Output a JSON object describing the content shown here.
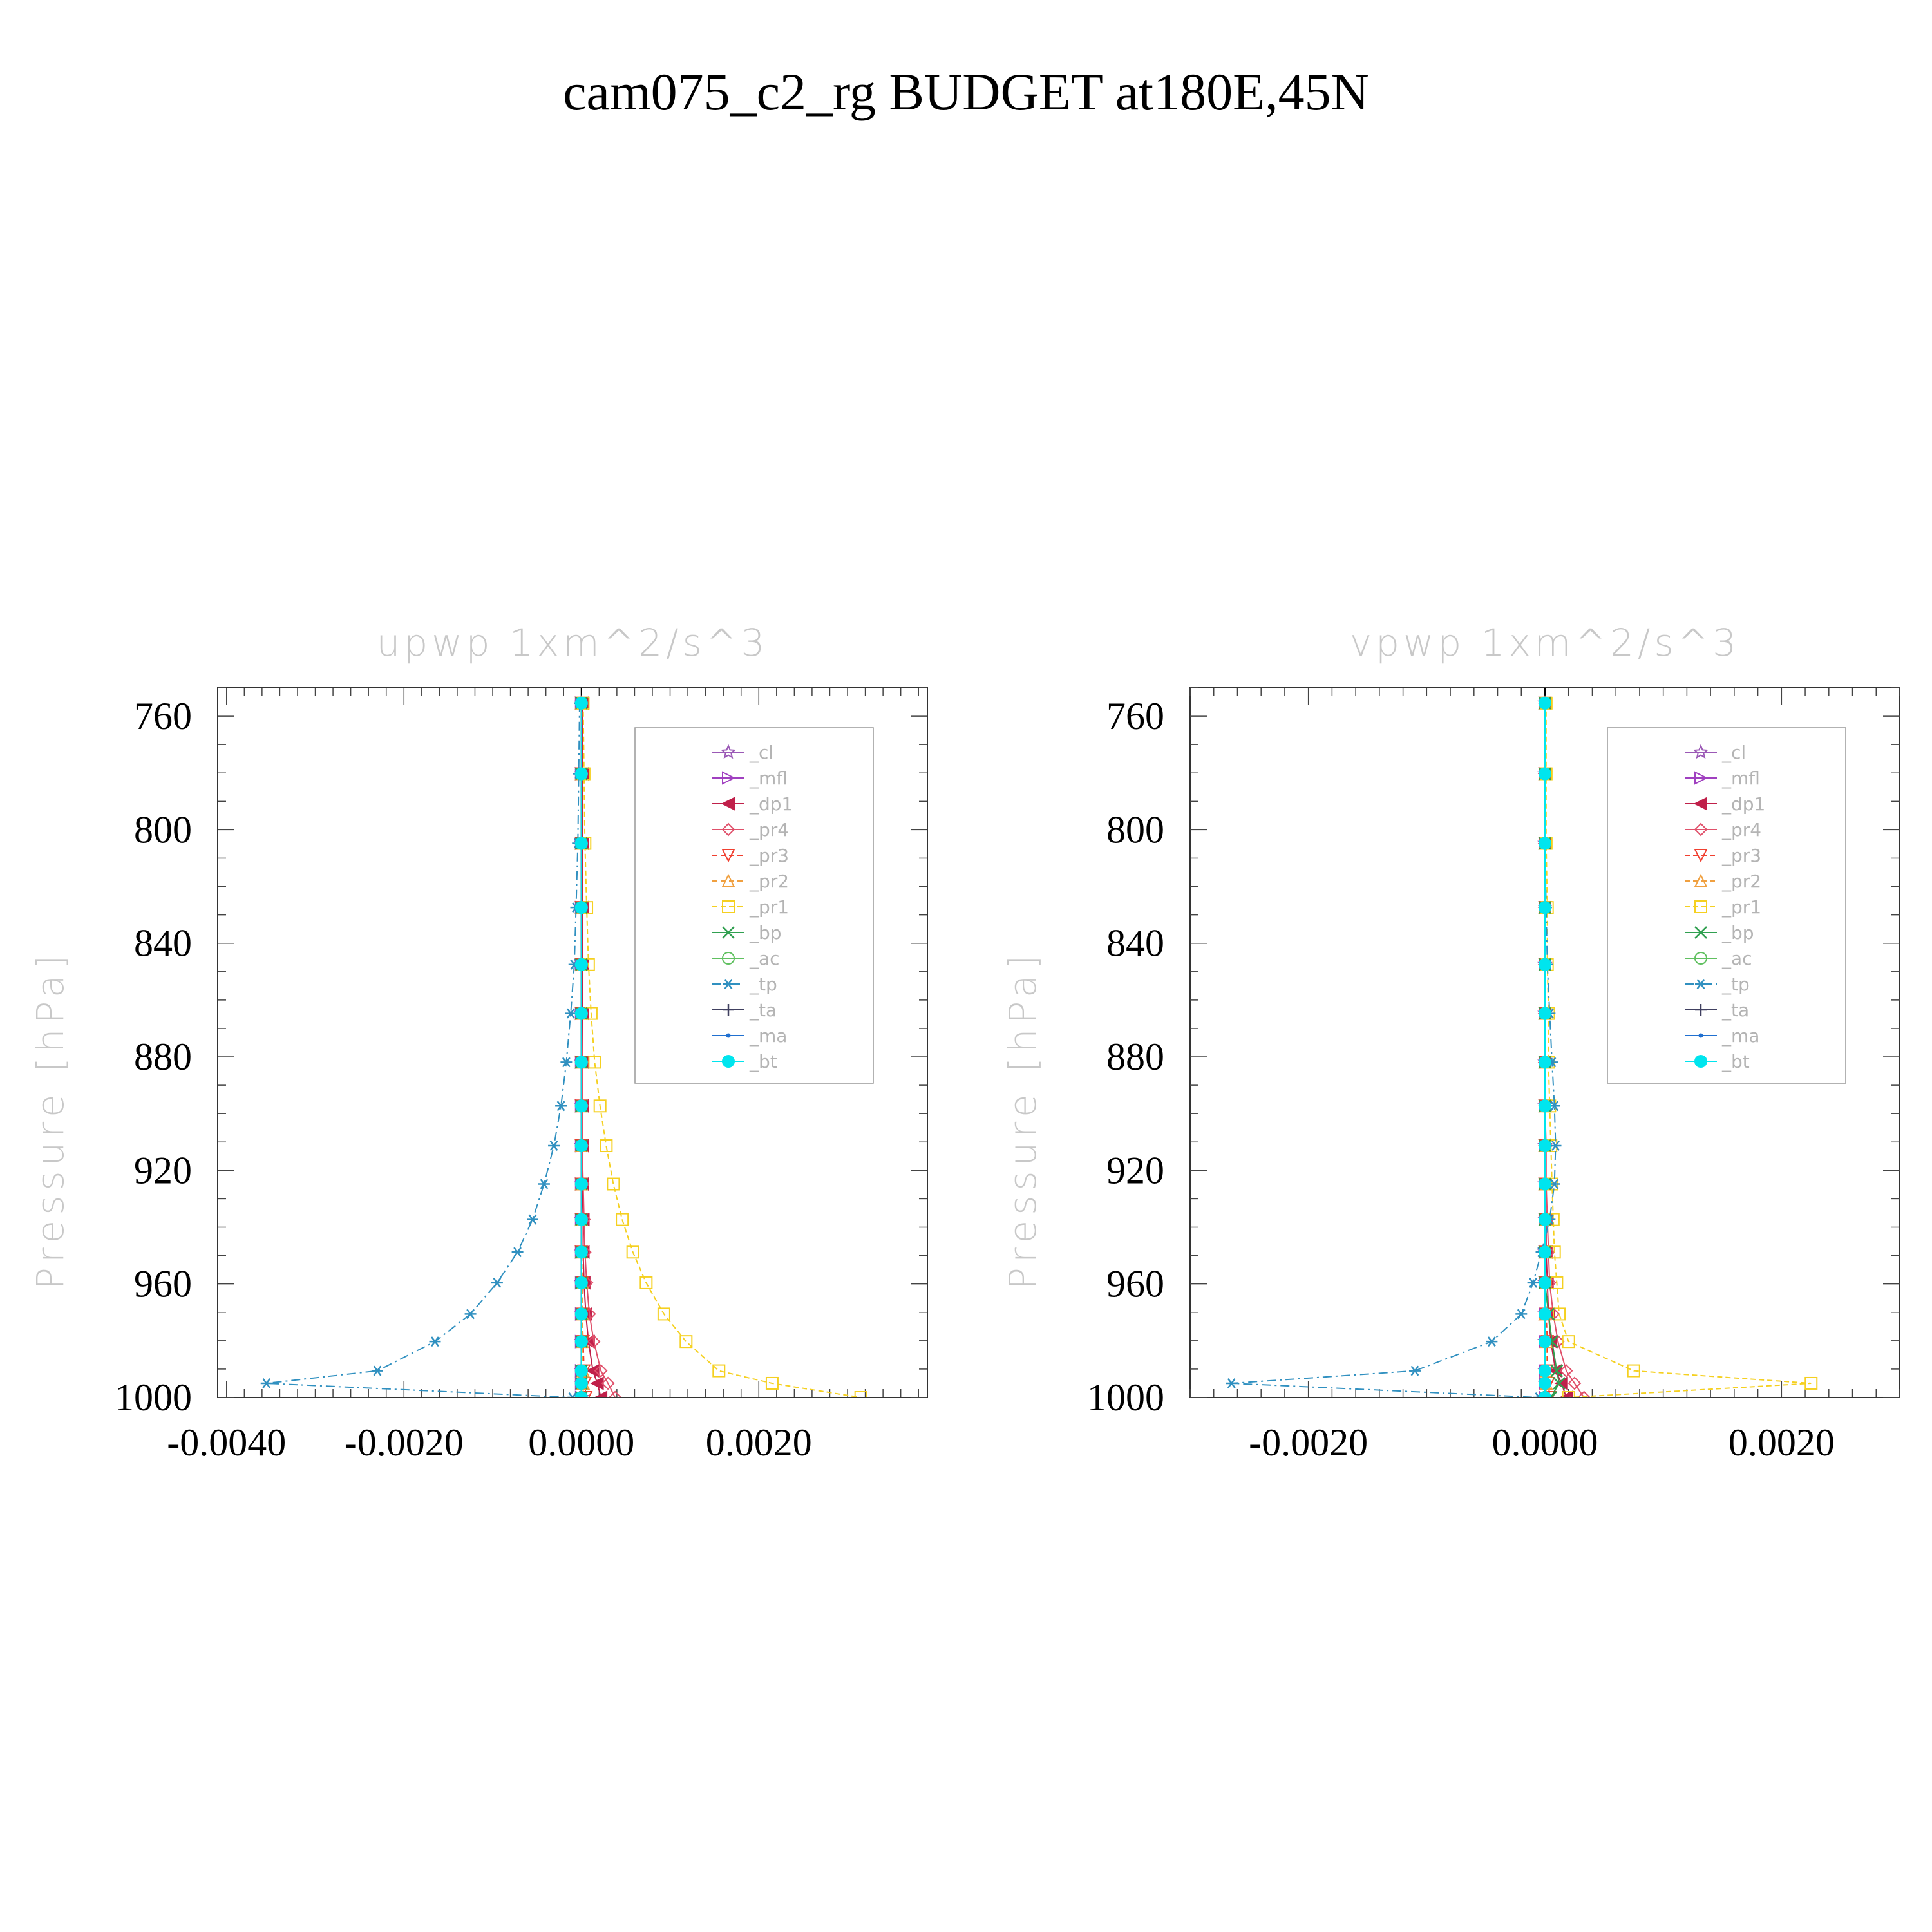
{
  "title": "cam075_c2_rg  BUDGET at180E,45N",
  "chart_data": [
    {
      "type": "line",
      "title": "upwp    1xm^2/s^3",
      "ylabel": "Pressure  [hPa]",
      "xlabel": "",
      "xlim": [
        -0.0041,
        0.0039
      ],
      "ylim": [
        750,
        1000
      ],
      "y_inverted": true,
      "grid": false,
      "legend_position": "top-right",
      "xticks": [
        -0.004,
        -0.002,
        0.0,
        0.002
      ],
      "xtick_labels": [
        "-0.0040",
        "-0.0020",
        "0.0000",
        "0.0020"
      ],
      "yticks": [
        760,
        800,
        840,
        880,
        920,
        960,
        1000
      ],
      "ytick_labels": [
        "760",
        "800",
        "840",
        "880",
        "920",
        "960",
        "1000"
      ],
      "pressure_levels": [
        755.4,
        780.3,
        804.8,
        827.4,
        847.5,
        864.7,
        881.9,
        897.3,
        911.3,
        924.8,
        937.3,
        948.8,
        959.6,
        970.6,
        980.3,
        990.6,
        995.0,
        1000.0
      ],
      "series": [
        {
          "name": "_cl",
          "color": "#9b59b6",
          "marker": "star",
          "values": [
            0,
            0,
            0,
            0,
            0,
            0,
            0,
            0,
            0,
            0,
            0,
            0,
            0,
            0,
            0,
            0,
            0,
            0
          ]
        },
        {
          "name": "_mfl",
          "color": "#a040c0",
          "marker": "triangle-right",
          "values": [
            0,
            0,
            0,
            0,
            0,
            0,
            0,
            0,
            0,
            0,
            0,
            0,
            0,
            0,
            0,
            0,
            0,
            0
          ]
        },
        {
          "name": "_dp1",
          "color": "#c0204a",
          "marker": "triangle-left",
          "values": [
            1e-05,
            1e-05,
            1e-05,
            1e-05,
            1e-05,
            1e-05,
            1e-05,
            1e-05,
            1e-05,
            1e-05,
            2e-05,
            2e-05,
            3e-05,
            5e-05,
            8e-05,
            0.00013,
            0.00018,
            0.00022
          ]
        },
        {
          "name": "_pr4",
          "color": "#e0506a",
          "marker": "diamond",
          "values": [
            0,
            0,
            0,
            0,
            0,
            0,
            1e-05,
            1e-05,
            1e-05,
            2e-05,
            3e-05,
            4e-05,
            6e-05,
            9e-05,
            0.00014,
            0.00022,
            0.0003,
            0.00038
          ]
        },
        {
          "name": "_pr3",
          "color": "#f04030",
          "marker": "triangle-down",
          "values": [
            0,
            0,
            0,
            0,
            0,
            0,
            0,
            0,
            0,
            0,
            0,
            0,
            1e-05,
            1e-05,
            2e-05,
            3e-05,
            4e-05,
            5e-05
          ]
        },
        {
          "name": "_pr2",
          "color": "#f0a040",
          "marker": "triangle-up",
          "values": [
            0,
            0,
            0,
            0,
            0,
            0,
            0,
            0,
            0,
            0,
            0,
            0,
            1e-05,
            1e-05,
            1e-05,
            2e-05,
            2e-05,
            2e-05
          ]
        },
        {
          "name": "_pr1",
          "color": "#f5d020",
          "marker": "square",
          "values": [
            2e-05,
            3e-05,
            4e-05,
            6e-05,
            8e-05,
            0.00011,
            0.00015,
            0.00021,
            0.00028,
            0.00036,
            0.00046,
            0.00058,
            0.00073,
            0.00093,
            0.00118,
            0.00155,
            0.00215,
            0.00315
          ]
        },
        {
          "name": "_bp",
          "color": "#30a050",
          "marker": "x",
          "values": [
            0,
            0,
            0,
            0,
            0,
            0,
            0,
            0,
            0,
            0,
            0,
            0,
            0,
            0,
            0,
            0,
            0,
            0
          ]
        },
        {
          "name": "_ac",
          "color": "#60c060",
          "marker": "circle-open",
          "values": [
            0,
            0,
            0,
            0,
            0,
            0,
            0,
            0,
            0,
            0,
            0,
            0,
            0,
            0,
            0,
            0,
            0,
            0
          ]
        },
        {
          "name": "_tp",
          "color": "#3090c0",
          "marker": "asterisk",
          "values": [
            -2e-05,
            -3e-05,
            -4e-05,
            -6e-05,
            -8e-05,
            -0.00012,
            -0.00017,
            -0.00023,
            -0.00031,
            -0.00042,
            -0.00055,
            -0.00072,
            -0.00095,
            -0.00125,
            -0.00165,
            -0.0023,
            -0.00355,
            -0.0001
          ]
        },
        {
          "name": "_ta",
          "color": "#404060",
          "marker": "plus",
          "values": [
            0,
            0,
            0,
            0,
            0,
            0,
            0,
            0,
            0,
            0,
            0,
            0,
            0,
            0,
            0,
            0,
            0,
            0
          ]
        },
        {
          "name": "_ma",
          "color": "#2070d0",
          "marker": "dot",
          "values": [
            0,
            0,
            0,
            0,
            0,
            0,
            0,
            0,
            0,
            0,
            0,
            0,
            0,
            0,
            0,
            0,
            0,
            0
          ]
        },
        {
          "name": "_bt",
          "color": "#00e5ee",
          "marker": "circle-filled",
          "values": [
            0,
            0,
            0,
            0,
            0,
            0,
            0,
            0,
            0,
            0,
            0,
            0,
            0,
            0,
            0,
            0,
            0,
            0
          ]
        }
      ]
    },
    {
      "type": "line",
      "title": "vpwp    1xm^2/s^3",
      "ylabel": "Pressure  [hPa]",
      "xlabel": "",
      "xlim": [
        -0.003,
        0.003
      ],
      "ylim": [
        750,
        1000
      ],
      "y_inverted": true,
      "grid": false,
      "legend_position": "top-right",
      "xticks": [
        -0.002,
        0.0,
        0.002
      ],
      "xtick_labels": [
        "-0.0020",
        "0.0000",
        "0.0020"
      ],
      "yticks": [
        760,
        800,
        840,
        880,
        920,
        960,
        1000
      ],
      "ytick_labels": [
        "760",
        "800",
        "840",
        "880",
        "920",
        "960",
        "1000"
      ],
      "pressure_levels": [
        755.4,
        780.3,
        804.8,
        827.4,
        847.5,
        864.7,
        881.9,
        897.3,
        911.3,
        924.8,
        937.3,
        948.8,
        959.6,
        970.6,
        980.3,
        990.6,
        995.0,
        1000.0
      ],
      "series": [
        {
          "name": "_cl",
          "color": "#9b59b6",
          "marker": "star",
          "values": [
            0,
            0,
            0,
            0,
            0,
            0,
            0,
            0,
            0,
            0,
            0,
            0,
            0,
            0,
            0,
            0,
            0,
            0
          ]
        },
        {
          "name": "_mfl",
          "color": "#a040c0",
          "marker": "triangle-right",
          "values": [
            0,
            0,
            0,
            0,
            0,
            0,
            0,
            0,
            0,
            0,
            0,
            0,
            0,
            0,
            0,
            0,
            0,
            0
          ]
        },
        {
          "name": "_dp1",
          "color": "#c0204a",
          "marker": "triangle-left",
          "values": [
            0,
            0,
            0,
            0,
            0,
            0,
            0,
            0,
            0,
            0,
            1e-05,
            1e-05,
            2e-05,
            3e-05,
            5e-05,
            9e-05,
            0.00014,
            0.00018
          ]
        },
        {
          "name": "_pr4",
          "color": "#e0506a",
          "marker": "diamond",
          "values": [
            0,
            0,
            0,
            0,
            0,
            0,
            0,
            0,
            1e-05,
            1e-05,
            2e-05,
            3e-05,
            4e-05,
            7e-05,
            0.00011,
            0.00018,
            0.00025,
            0.00033
          ]
        },
        {
          "name": "_pr3",
          "color": "#f04030",
          "marker": "triangle-down",
          "values": [
            0,
            0,
            0,
            0,
            0,
            0,
            0,
            0,
            0,
            0,
            0,
            0,
            0,
            1e-05,
            2e-05,
            2e-05,
            3e-05,
            4e-05
          ]
        },
        {
          "name": "_pr2",
          "color": "#f0a040",
          "marker": "triangle-up",
          "values": [
            0,
            0,
            0,
            0,
            0,
            0,
            0,
            0,
            0,
            0,
            0,
            0,
            0,
            0,
            1e-05,
            1e-05,
            1e-05,
            1e-05
          ]
        },
        {
          "name": "_pr1",
          "color": "#f5d020",
          "marker": "square",
          "values": [
            1e-05,
            1e-05,
            1e-05,
            2e-05,
            2e-05,
            3e-05,
            3e-05,
            4e-05,
            5e-05,
            6e-05,
            7e-05,
            8e-05,
            0.0001,
            0.00012,
            0.0002,
            0.00075,
            0.00225,
            0.0002
          ]
        },
        {
          "name": "_bp",
          "color": "#30a050",
          "marker": "x",
          "values": [
            0,
            0,
            0,
            0,
            0,
            0,
            0,
            0,
            0,
            0,
            0,
            0,
            0,
            3e-05,
            6e-05,
            0.0001,
            0.00012,
            5e-05
          ]
        },
        {
          "name": "_ac",
          "color": "#60c060",
          "marker": "circle-open",
          "values": [
            0,
            0,
            0,
            0,
            0,
            0,
            0,
            0,
            0,
            0,
            0,
            0,
            0,
            0,
            0,
            0,
            0,
            0
          ]
        },
        {
          "name": "_tp",
          "color": "#3090c0",
          "marker": "asterisk",
          "values": [
            0,
            0,
            0,
            1e-05,
            2e-05,
            4e-05,
            6e-05,
            8e-05,
            9e-05,
            8e-05,
            4e-05,
            -3e-05,
            -0.0001,
            -0.0002,
            -0.00045,
            -0.0011,
            -0.00265,
            -5e-05
          ]
        },
        {
          "name": "_ta",
          "color": "#404060",
          "marker": "plus",
          "values": [
            0,
            0,
            0,
            0,
            0,
            0,
            0,
            0,
            0,
            0,
            0,
            0,
            0,
            0,
            0,
            0,
            0,
            0
          ]
        },
        {
          "name": "_ma",
          "color": "#2070d0",
          "marker": "dot",
          "values": [
            0,
            0,
            0,
            0,
            0,
            0,
            0,
            0,
            0,
            0,
            0,
            0,
            0,
            0,
            0,
            0,
            0,
            0
          ]
        },
        {
          "name": "_bt",
          "color": "#00e5ee",
          "marker": "circle-filled",
          "values": [
            0,
            0,
            0,
            0,
            0,
            0,
            0,
            0,
            0,
            0,
            0,
            0,
            0,
            0,
            0,
            0,
            0,
            0
          ]
        }
      ]
    }
  ]
}
